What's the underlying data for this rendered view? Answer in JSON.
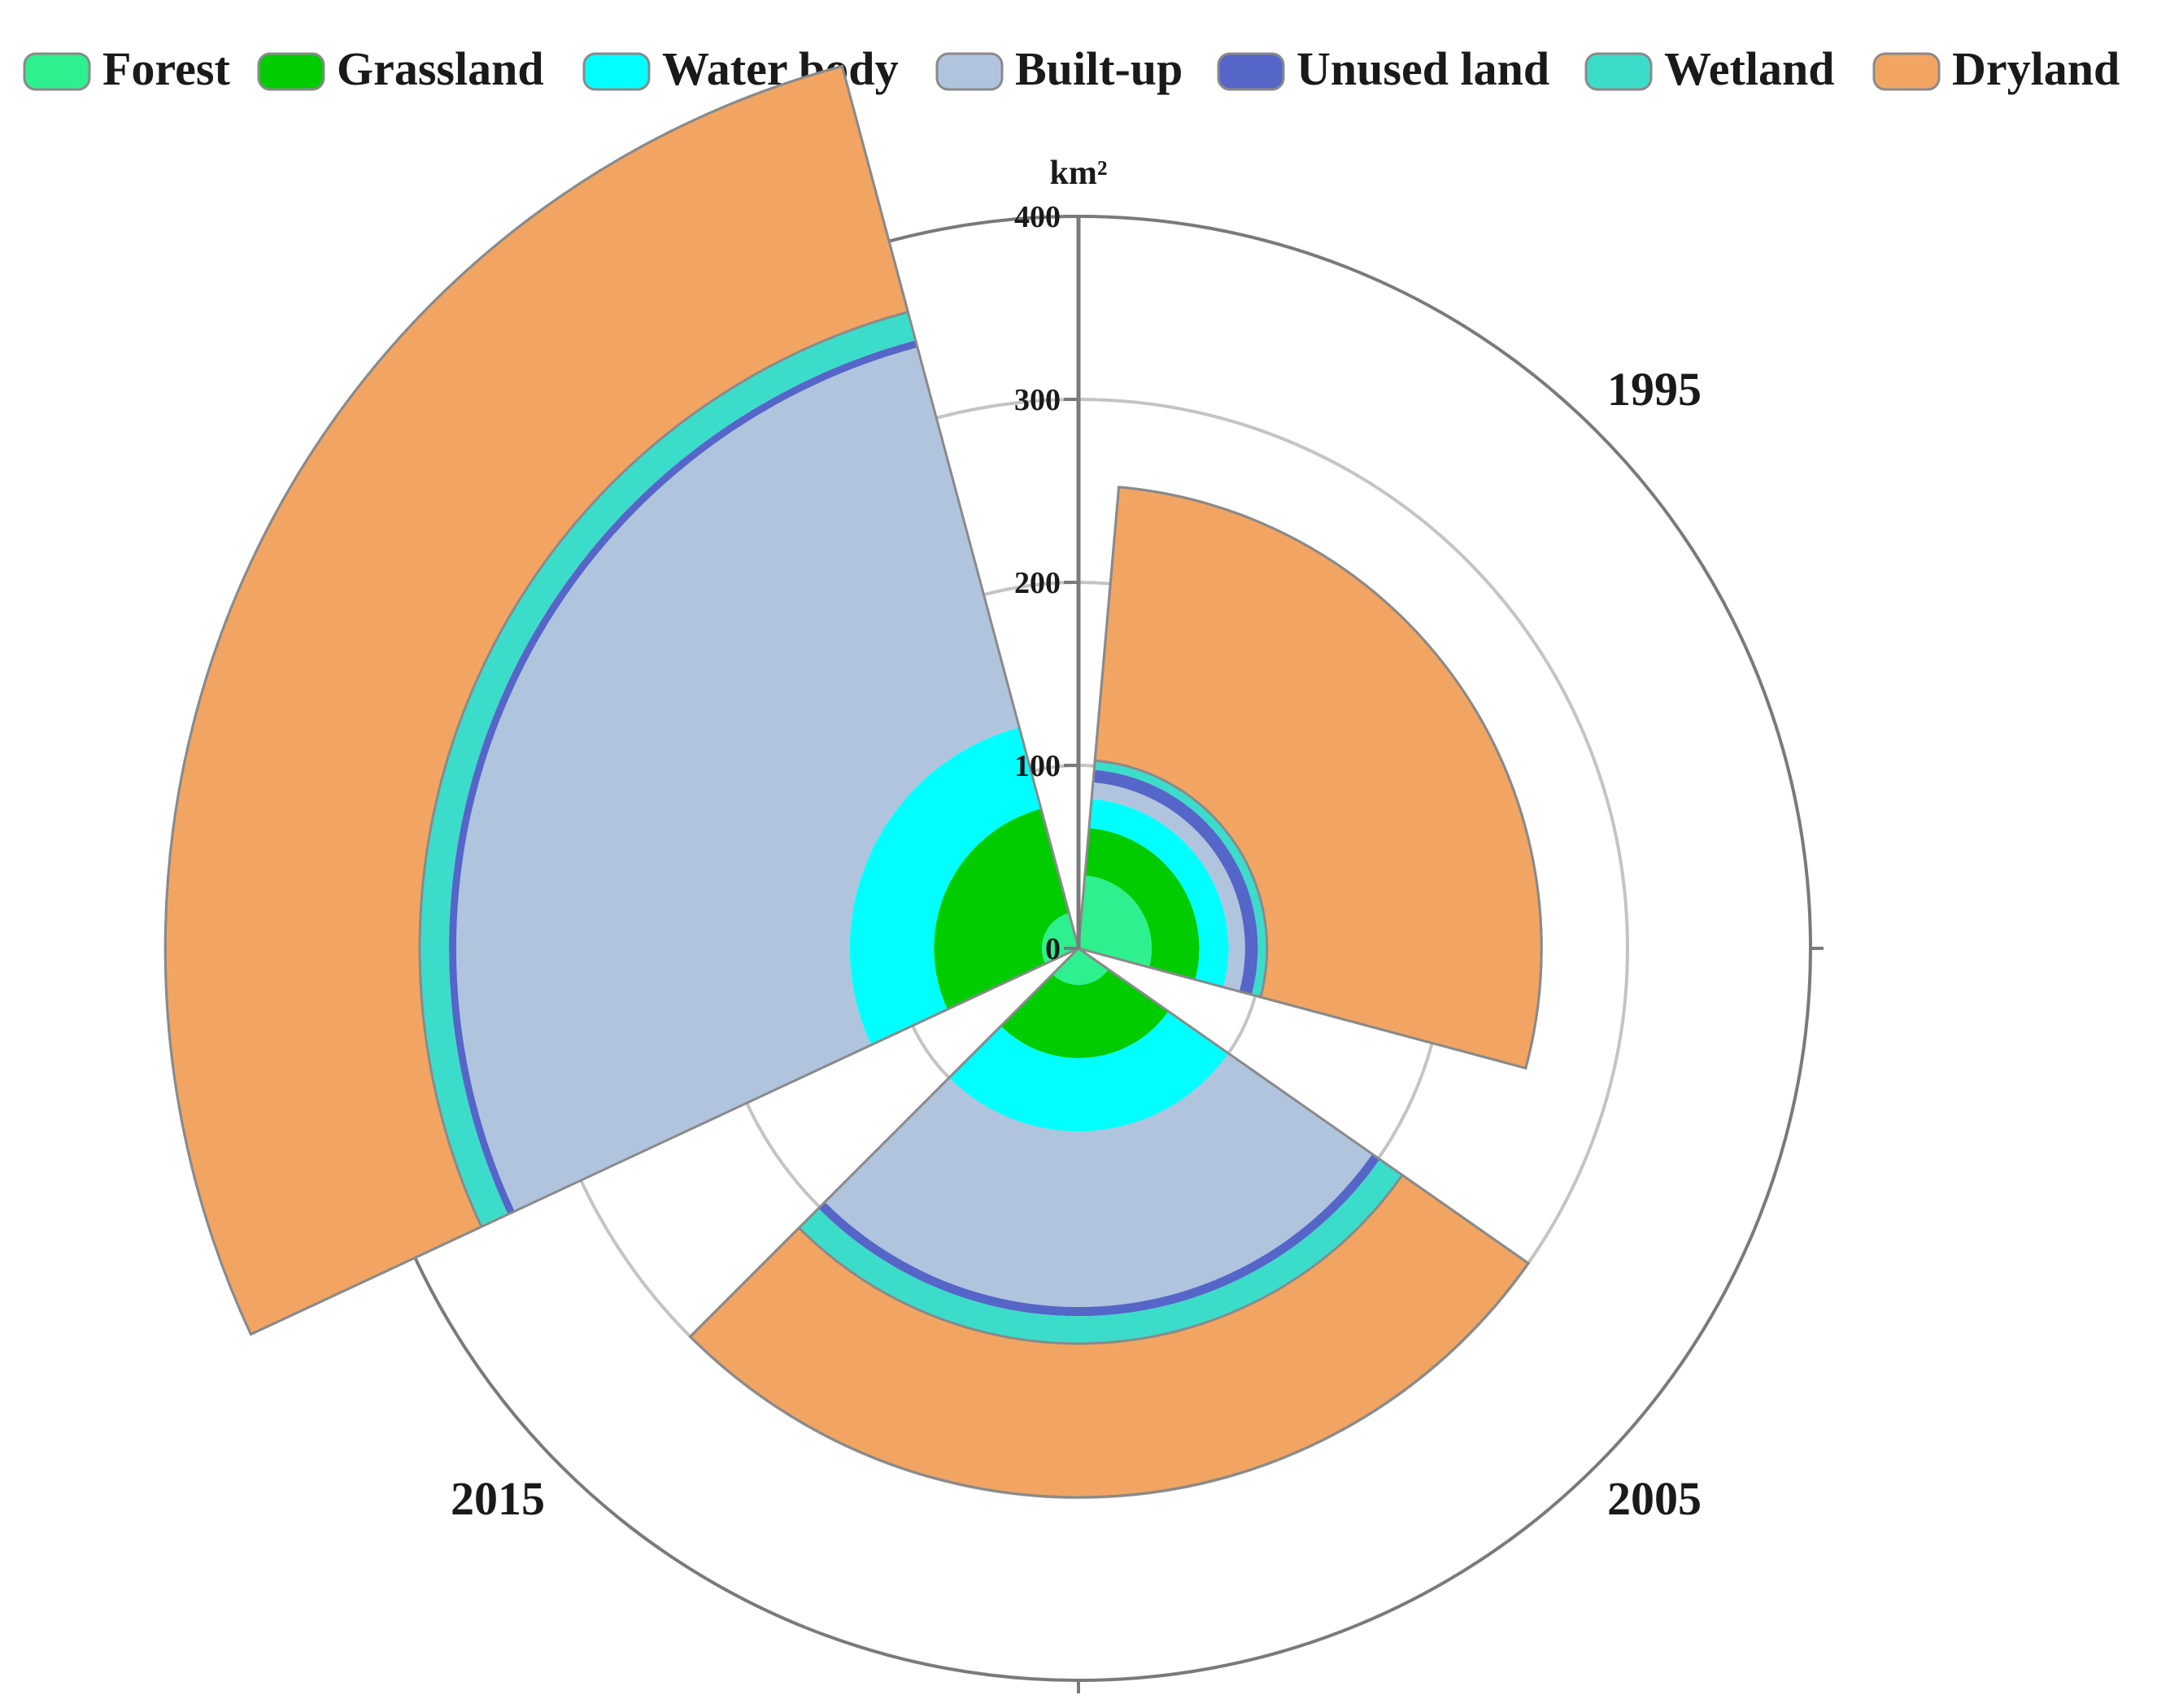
{
  "chart_data": {
    "type": "polar stacked bar",
    "ylabel": "km²",
    "rlim": [
      0,
      400
    ],
    "r_ticks": [
      "0",
      "100",
      "200",
      "300",
      "400"
    ],
    "grid": true,
    "legend_position": "top",
    "categories": [
      "1995",
      "2005",
      "2015"
    ],
    "series": [
      {
        "name": "Forest",
        "color": "#2EF08F",
        "values": [
          40,
          20,
          20
        ]
      },
      {
        "name": "Grassland",
        "color": "#00CC00",
        "values": [
          26,
          40,
          59
        ]
      },
      {
        "name": "Water body",
        "color": "#00FFFF",
        "values": [
          16,
          40,
          46
        ]
      },
      {
        "name": "Built-up",
        "color": "#B0C4DE",
        "values": [
          9,
          96,
          215
        ]
      },
      {
        "name": "Unused land",
        "color": "#5566C8",
        "values": [
          7,
          5,
          4
        ]
      },
      {
        "name": "Wetland",
        "color": "#3CDCCA",
        "values": [
          5,
          15,
          16
        ]
      },
      {
        "name": "Dryland",
        "color": "#F2A562",
        "values": [
          150,
          84,
          139
        ]
      }
    ]
  }
}
